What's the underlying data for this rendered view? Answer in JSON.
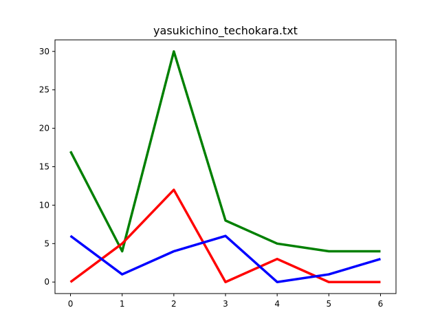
{
  "chart_data": {
    "type": "line",
    "title": "yasukichino_techokara.txt",
    "xlabel": "",
    "ylabel": "",
    "x": [
      0,
      1,
      2,
      3,
      4,
      5,
      6
    ],
    "xticks": [
      0,
      1,
      2,
      3,
      4,
      5,
      6
    ],
    "yticks": [
      0,
      5,
      10,
      15,
      20,
      25,
      30
    ],
    "xlim": [
      -0.3,
      6.3
    ],
    "ylim": [
      -1.5,
      31.5
    ],
    "grid": false,
    "series": [
      {
        "color": "#008000",
        "values": [
          17,
          4,
          30,
          8,
          5,
          4,
          4
        ]
      },
      {
        "color": "#ff0000",
        "values": [
          0,
          5,
          12,
          0,
          3,
          0,
          0
        ]
      },
      {
        "color": "#0000ff",
        "values": [
          6,
          1,
          4,
          6,
          0,
          1,
          3
        ]
      }
    ]
  }
}
